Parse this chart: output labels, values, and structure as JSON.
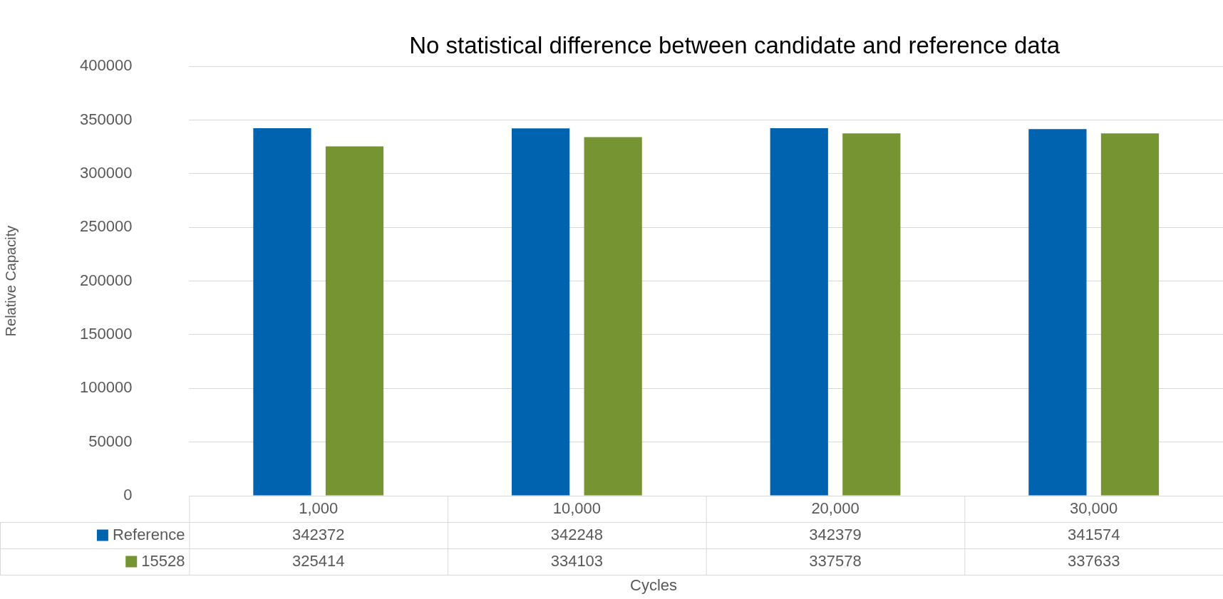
{
  "chart_data": {
    "type": "bar",
    "title": "No statistical difference between candidate and reference data",
    "xlabel": "Cycles",
    "ylabel": "Relative Capacity",
    "categories": [
      "1,000",
      "10,000",
      "20,000",
      "30,000"
    ],
    "series": [
      {
        "name": "Reference",
        "color": "#0063af",
        "values": [
          342372,
          342248,
          342379,
          341574
        ]
      },
      {
        "name": "15528",
        "color": "#779432",
        "values": [
          325414,
          334103,
          337578,
          337633
        ]
      }
    ],
    "ylim": [
      0,
      400000
    ],
    "yticks": [
      0,
      50000,
      100000,
      150000,
      200000,
      250000,
      300000,
      350000,
      400000
    ],
    "grid": "y",
    "legend": "bottom",
    "data_labels": true
  }
}
